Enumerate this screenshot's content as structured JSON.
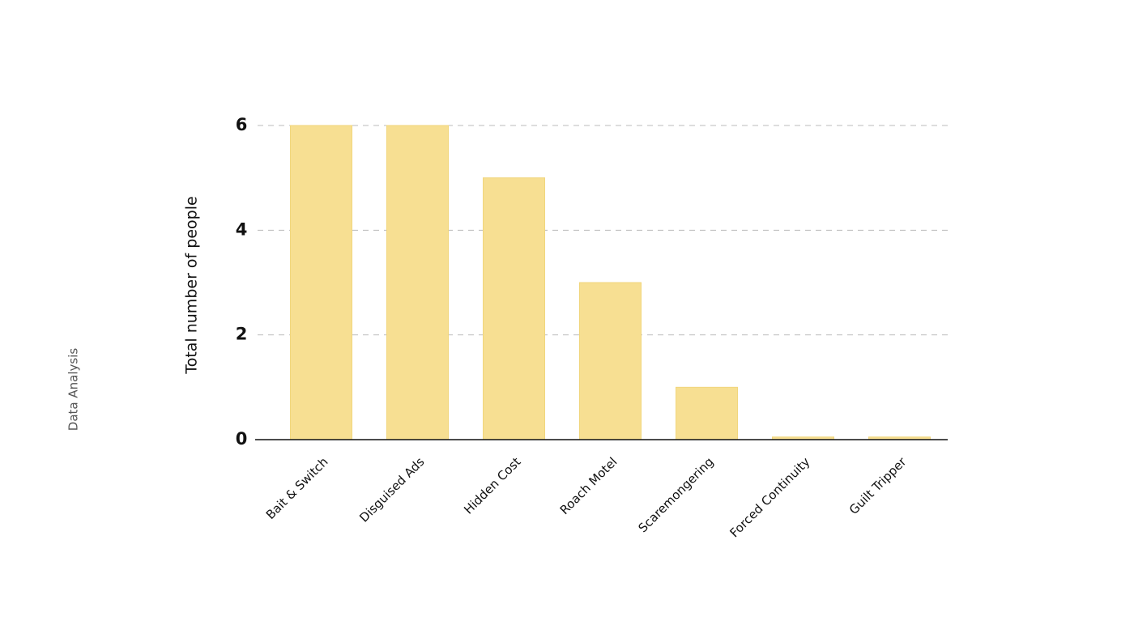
{
  "section": "Data Analysis",
  "chart_data": {
    "type": "bar",
    "y_label": "Total number of people",
    "categories": [
      "Bait & Switch",
      "Disguised Ads",
      "Hidden Cost",
      "Roach Motel",
      "Scaremongering",
      "Forced Continuity",
      "Guilt Tripper"
    ],
    "values": [
      6,
      6,
      5,
      3,
      1,
      0.05,
      0.05
    ],
    "color": "#f7df92",
    "ylim": [
      0,
      6
    ],
    "yticks": [
      0,
      2,
      4,
      6
    ],
    "grid": true
  }
}
